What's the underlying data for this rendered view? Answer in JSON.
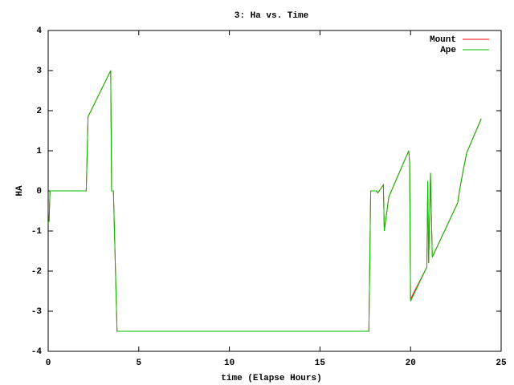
{
  "chart_data": {
    "type": "line",
    "title": "3: Ha vs. Time",
    "x_label": "time (Elapse Hours)",
    "y_label": "HA",
    "x": [
      0,
      0.05,
      0.1,
      2.1,
      2.2,
      3.45,
      3.5,
      3.6,
      3.8,
      17.7,
      17.8,
      18.1,
      18.2,
      18.5,
      18.55,
      18.8,
      19.9,
      19.95,
      20.0,
      20.9,
      20.95,
      21.0,
      21.1,
      21.2,
      22.6,
      22.7,
      22.9,
      23.1,
      23.9
    ],
    "series": [
      {
        "name": "Mount",
        "color": "#ff0000",
        "values": [
          -0.8,
          -0.75,
          0,
          0,
          1.85,
          3.0,
          0,
          0,
          -3.5,
          -3.5,
          0,
          0,
          -0.05,
          0.15,
          -1.0,
          -0.15,
          1.0,
          0.7,
          -2.7,
          -1.9,
          0.2,
          -1.8,
          0.45,
          -1.65,
          -0.3,
          0,
          0.5,
          0.95,
          1.8
        ]
      },
      {
        "name": "Ape",
        "color": "#00c000",
        "values": [
          -0.8,
          -0.75,
          0,
          0,
          1.85,
          3.0,
          0,
          0,
          -3.5,
          -3.5,
          0,
          0,
          -0.05,
          0.15,
          -1.0,
          -0.15,
          1.0,
          0.7,
          -2.75,
          -1.9,
          0.25,
          -1.8,
          0.45,
          -1.65,
          -0.3,
          0,
          0.5,
          0.95,
          1.8
        ]
      }
    ],
    "xlim": [
      0,
      25
    ],
    "xticks": [
      0,
      5,
      10,
      15,
      20,
      25
    ],
    "ylim": [
      -4,
      4
    ],
    "yticks": [
      -4,
      -3,
      -2,
      -1,
      0,
      1,
      2,
      3,
      4
    ],
    "grid": false,
    "legend": "top-right"
  }
}
